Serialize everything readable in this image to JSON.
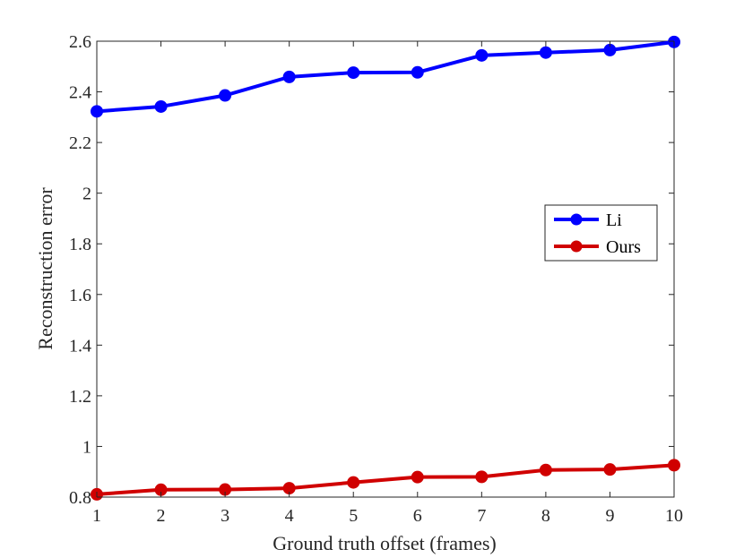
{
  "chart_data": {
    "type": "line",
    "title": "",
    "xlabel": "Ground truth offset (frames)",
    "ylabel": "Reconstruction error",
    "xlim": [
      1,
      10
    ],
    "ylim": [
      0.8,
      2.6
    ],
    "x": [
      1,
      2,
      3,
      4,
      5,
      6,
      7,
      8,
      9,
      10
    ],
    "xticks": [
      1,
      2,
      3,
      4,
      5,
      6,
      7,
      8,
      9,
      10
    ],
    "xtick_labels": [
      "1",
      "2",
      "3",
      "4",
      "5",
      "6",
      "7",
      "8",
      "9",
      "10"
    ],
    "yticks": [
      0.8,
      1.0,
      1.2,
      1.4,
      1.6,
      1.8,
      2.0,
      2.2,
      2.4,
      2.6
    ],
    "ytick_labels": [
      "0.8",
      "1",
      "1.2",
      "1.4",
      "1.6",
      "1.8",
      "2",
      "2.2",
      "2.4",
      "2.6"
    ],
    "grid": false,
    "legend_position": "right-center",
    "series": [
      {
        "name": "Li",
        "color": "#0000ff",
        "marker": "circle",
        "values": [
          2.323,
          2.342,
          2.386,
          2.459,
          2.476,
          2.477,
          2.544,
          2.555,
          2.565,
          2.597
        ]
      },
      {
        "name": "Ours",
        "color": "#d00000",
        "marker": "circle",
        "values": [
          0.811,
          0.829,
          0.83,
          0.835,
          0.858,
          0.879,
          0.88,
          0.907,
          0.909,
          0.926
        ]
      }
    ]
  }
}
